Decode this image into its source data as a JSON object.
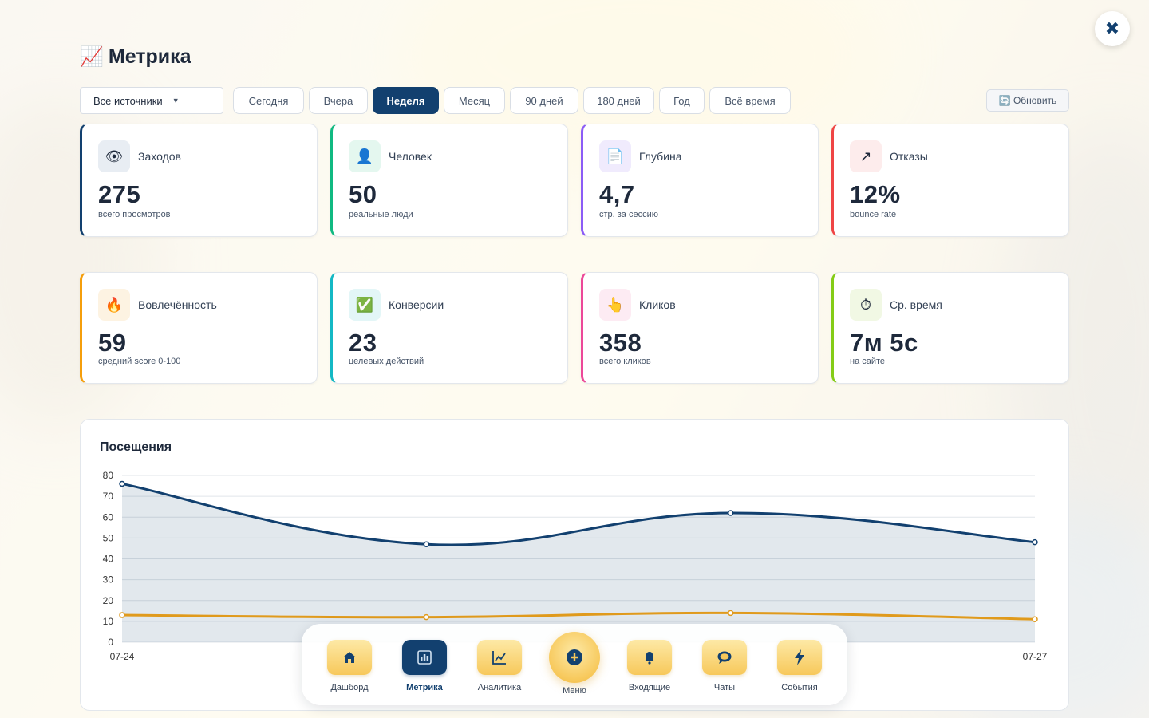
{
  "page": {
    "title": "Метрика",
    "close_label": "✖"
  },
  "filters": {
    "source_selected": "Все источники",
    "periods": [
      "Сегодня",
      "Вчера",
      "Неделя",
      "Месяц",
      "90 дней",
      "180 дней",
      "Год",
      "Всё время"
    ],
    "active_period": "Неделя",
    "refresh_label": "🔄 Обновить"
  },
  "cards": [
    {
      "icon": "eye-icon",
      "glyph": "👁",
      "label": "Заходов",
      "value": "275",
      "sub": "всего просмотров",
      "accent": "#12406f",
      "icon_bg": "#e8edf3"
    },
    {
      "icon": "person-icon",
      "glyph": "👤",
      "label": "Человек",
      "value": "50",
      "sub": "реальные люди",
      "accent": "#10b981",
      "icon_bg": "#e4f7ef"
    },
    {
      "icon": "document-icon",
      "glyph": "📄",
      "label": "Глубина",
      "value": "4,7",
      "sub": "стр. за сессию",
      "accent": "#8b5cf6",
      "icon_bg": "#f0ebfd"
    },
    {
      "icon": "arrow-up-right-icon",
      "glyph": "↗",
      "label": "Отказы",
      "value": "12%",
      "sub": "bounce rate",
      "accent": "#ef4444",
      "icon_bg": "#fdecec"
    },
    {
      "icon": "fire-icon",
      "glyph": "🔥",
      "label": "Вовлечённость",
      "value": "59",
      "sub": "средний score 0-100",
      "accent": "#f59e0b",
      "icon_bg": "#fdf3e2"
    },
    {
      "icon": "check-icon",
      "glyph": "✅",
      "label": "Конверсии",
      "value": "23",
      "sub": "целевых действий",
      "accent": "#14b8c4",
      "icon_bg": "#e3f6f7"
    },
    {
      "icon": "pointer-hand-icon",
      "glyph": "👆",
      "label": "Кликов",
      "value": "358",
      "sub": "всего кликов",
      "accent": "#ec4899",
      "icon_bg": "#fdebf3"
    },
    {
      "icon": "stopwatch-icon",
      "glyph": "⏱",
      "label": "Ср. время",
      "value": "7м 5с",
      "sub": "на сайте",
      "accent": "#84cc16",
      "icon_bg": "#f1f8e4"
    }
  ],
  "chart_data": {
    "type": "area",
    "title": "Посещения",
    "x": [
      "07-24",
      "07-25",
      "07-26",
      "07-27"
    ],
    "x_tick_labels_shown": [
      "07-24",
      "07-27"
    ],
    "y_ticks": [
      0,
      10,
      20,
      30,
      40,
      50,
      60,
      70,
      80
    ],
    "ylim": [
      0,
      80
    ],
    "grid": true,
    "series": [
      {
        "values": [
          76,
          47,
          62,
          48
        ],
        "color": "#12406f",
        "fill": true
      },
      {
        "values": [
          13,
          12,
          14,
          11
        ],
        "color": "#e09a1c",
        "fill": false
      }
    ]
  },
  "nav": {
    "items": [
      {
        "label": "Дашборд",
        "icon": "home-icon"
      },
      {
        "label": "Метрика",
        "icon": "bar-chart-icon",
        "active": true
      },
      {
        "label": "Аналитика",
        "icon": "line-chart-icon"
      },
      {
        "label": "Входящие",
        "icon": "bell-icon"
      },
      {
        "label": "Чаты",
        "icon": "chat-bubble-icon"
      },
      {
        "label": "События",
        "icon": "lightning-icon"
      }
    ],
    "center": {
      "label": "Меню",
      "icon": "plus-circle-icon"
    }
  }
}
